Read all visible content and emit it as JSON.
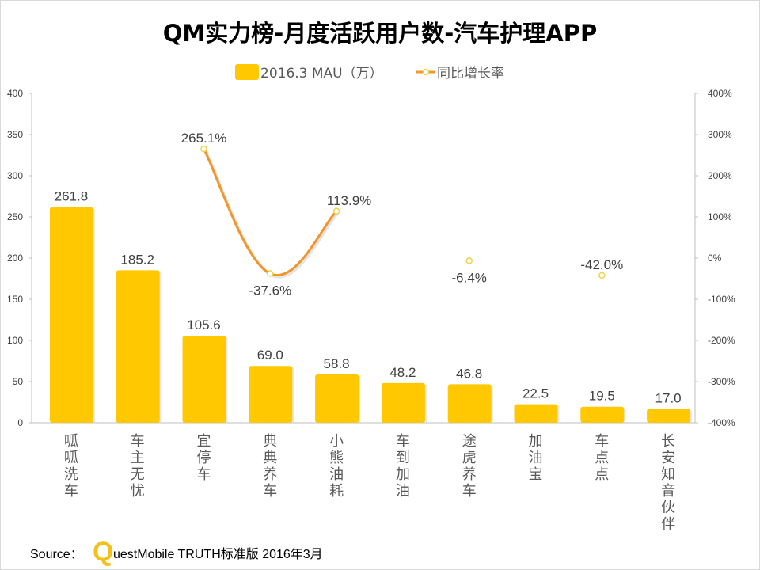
{
  "colors": {
    "bar": "#FFC800",
    "line": "#F0962A",
    "marker_fill": "#FFFFFF",
    "marker_stroke": "#F2D14B",
    "axis": "#BFBFBF"
  },
  "source": {
    "prefix": "Source：",
    "logo_letter": "Q",
    "text": "uestMobile TRUTH标准版 2016年3月"
  },
  "chart_data": {
    "type": "bar",
    "title": "QM实力榜-月度活跃用户数-汽车护理APP",
    "legend_position": "top",
    "grid": false,
    "categories": [
      "呱呱洗车",
      "车主无忧",
      "宜停车",
      "典典养车",
      "小熊油耗",
      "车到加油",
      "途虎养车",
      "加油宝",
      "车点点",
      "长安知音伙伴"
    ],
    "y_left": {
      "range": [
        0,
        400
      ],
      "ticks": [
        "0",
        "50",
        "100",
        "150",
        "200",
        "250",
        "300",
        "350",
        "400"
      ]
    },
    "y_right": {
      "range": [
        -400,
        400
      ],
      "unit": "%",
      "ticks": [
        "-400%",
        "-300%",
        "-200%",
        "-100%",
        "0%",
        "100%",
        "200%",
        "300%",
        "400%"
      ]
    },
    "series": [
      {
        "name": "2016.3 MAU（万）",
        "type": "bar",
        "axis": "left",
        "values": [
          261.8,
          185.2,
          105.6,
          69.0,
          58.8,
          48.2,
          46.8,
          22.5,
          19.5,
          17.0
        ],
        "labels": [
          "261.8",
          "185.2",
          "105.6",
          "69.0",
          "58.8",
          "48.2",
          "46.8",
          "22.5",
          "19.5",
          "17.0"
        ]
      },
      {
        "name": "同比增长率",
        "type": "line",
        "axis": "right",
        "smooth": true,
        "values": [
          null,
          null,
          265.1,
          -37.6,
          113.9,
          null,
          -6.4,
          null,
          -42.0,
          null
        ],
        "labels": [
          null,
          null,
          "265.1%",
          "-37.6%",
          "113.9%",
          null,
          "-6.4%",
          null,
          "-42.0%",
          null
        ]
      }
    ]
  }
}
